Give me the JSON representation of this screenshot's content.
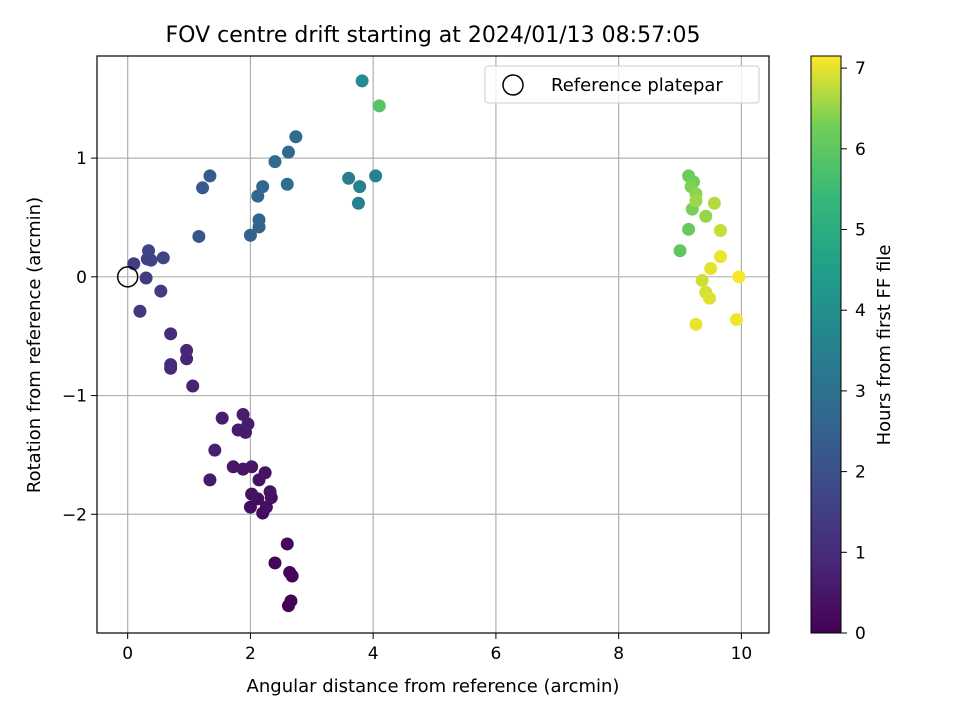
{
  "chart_data": {
    "type": "scatter",
    "title": "FOV centre drift starting at 2024/01/13 08:57:05",
    "xlabel": "Angular distance from reference (arcmin)",
    "ylabel": "Rotation from reference (arcmin)",
    "xlim": [
      -0.5,
      10.45
    ],
    "ylim": [
      -3.0,
      1.86
    ],
    "xticks": [
      0,
      2,
      4,
      6,
      8,
      10
    ],
    "xtick_labels": [
      "0",
      "2",
      "4",
      "6",
      "8",
      "10"
    ],
    "yticks": [
      -2,
      -1,
      0,
      1
    ],
    "ytick_labels": [
      "−2",
      "−1",
      "0",
      "1"
    ],
    "grid": true,
    "legend": {
      "position": "top-right",
      "entries": [
        "Reference platepar"
      ]
    },
    "reference_point": {
      "x": 0,
      "y": 0
    },
    "colorbar": {
      "label": "Hours from first FF file",
      "range": [
        0,
        7.15
      ],
      "ticks": [
        0,
        1,
        2,
        3,
        4,
        5,
        6,
        7
      ],
      "tick_labels": [
        "0",
        "1",
        "2",
        "3",
        "4",
        "5",
        "6",
        "7"
      ],
      "colormap": "viridis"
    },
    "points": [
      {
        "x": 2.62,
        "y": -2.77,
        "c": 0.02
      },
      {
        "x": 2.66,
        "y": -2.73,
        "c": 0.05
      },
      {
        "x": 2.68,
        "y": -2.52,
        "c": 0.08
      },
      {
        "x": 2.64,
        "y": -2.49,
        "c": 0.1
      },
      {
        "x": 2.4,
        "y": -2.41,
        "c": 0.12
      },
      {
        "x": 2.6,
        "y": -2.25,
        "c": 0.15
      },
      {
        "x": 2.2,
        "y": -1.99,
        "c": 0.25
      },
      {
        "x": 2.0,
        "y": -1.94,
        "c": 0.28
      },
      {
        "x": 2.26,
        "y": -1.94,
        "c": 0.3
      },
      {
        "x": 2.12,
        "y": -1.87,
        "c": 0.32
      },
      {
        "x": 2.34,
        "y": -1.86,
        "c": 0.34
      },
      {
        "x": 2.02,
        "y": -1.83,
        "c": 0.36
      },
      {
        "x": 2.32,
        "y": -1.81,
        "c": 0.38
      },
      {
        "x": 2.14,
        "y": -1.71,
        "c": 0.4
      },
      {
        "x": 2.24,
        "y": -1.65,
        "c": 0.42
      },
      {
        "x": 1.88,
        "y": -1.62,
        "c": 0.45
      },
      {
        "x": 2.02,
        "y": -1.6,
        "c": 0.48
      },
      {
        "x": 1.72,
        "y": -1.6,
        "c": 0.5
      },
      {
        "x": 1.34,
        "y": -1.71,
        "c": 0.55
      },
      {
        "x": 1.92,
        "y": -1.31,
        "c": 0.58
      },
      {
        "x": 1.8,
        "y": -1.29,
        "c": 0.6
      },
      {
        "x": 1.96,
        "y": -1.24,
        "c": 0.62
      },
      {
        "x": 1.88,
        "y": -1.16,
        "c": 0.64
      },
      {
        "x": 1.54,
        "y": -1.19,
        "c": 0.66
      },
      {
        "x": 1.42,
        "y": -1.46,
        "c": 0.7
      },
      {
        "x": 1.06,
        "y": -0.92,
        "c": 0.78
      },
      {
        "x": 0.96,
        "y": -0.69,
        "c": 0.85
      },
      {
        "x": 0.96,
        "y": -0.62,
        "c": 0.88
      },
      {
        "x": 0.7,
        "y": -0.77,
        "c": 0.92
      },
      {
        "x": 0.7,
        "y": -0.74,
        "c": 0.95
      },
      {
        "x": 0.7,
        "y": -0.48,
        "c": 1.0
      },
      {
        "x": 0.2,
        "y": -0.29,
        "c": 1.3
      },
      {
        "x": 0.54,
        "y": -0.12,
        "c": 1.4
      },
      {
        "x": 0.3,
        "y": -0.01,
        "c": 1.45
      },
      {
        "x": 0.1,
        "y": 0.11,
        "c": 1.5
      },
      {
        "x": 0.32,
        "y": 0.15,
        "c": 1.55
      },
      {
        "x": 0.38,
        "y": 0.14,
        "c": 1.6
      },
      {
        "x": 0.58,
        "y": 0.16,
        "c": 1.62
      },
      {
        "x": 0.34,
        "y": 0.22,
        "c": 1.65
      },
      {
        "x": 1.16,
        "y": 0.34,
        "c": 2.15
      },
      {
        "x": 1.22,
        "y": 0.75,
        "c": 2.25
      },
      {
        "x": 1.34,
        "y": 0.85,
        "c": 2.3
      },
      {
        "x": 2.0,
        "y": 0.35,
        "c": 2.5
      },
      {
        "x": 2.14,
        "y": 0.42,
        "c": 2.55
      },
      {
        "x": 2.14,
        "y": 0.48,
        "c": 2.6
      },
      {
        "x": 2.12,
        "y": 0.68,
        "c": 2.65
      },
      {
        "x": 2.2,
        "y": 0.76,
        "c": 2.7
      },
      {
        "x": 2.4,
        "y": 0.97,
        "c": 2.75
      },
      {
        "x": 2.62,
        "y": 1.05,
        "c": 2.8
      },
      {
        "x": 2.74,
        "y": 1.18,
        "c": 2.85
      },
      {
        "x": 2.6,
        "y": 0.78,
        "c": 2.9
      },
      {
        "x": 3.6,
        "y": 0.83,
        "c": 3.45
      },
      {
        "x": 3.76,
        "y": 0.62,
        "c": 3.5
      },
      {
        "x": 3.78,
        "y": 0.76,
        "c": 3.55
      },
      {
        "x": 4.04,
        "y": 0.85,
        "c": 3.6
      },
      {
        "x": 3.82,
        "y": 1.65,
        "c": 3.9
      },
      {
        "x": 4.1,
        "y": 1.44,
        "c": 5.9
      },
      {
        "x": 9.0,
        "y": 0.22,
        "c": 6.0
      },
      {
        "x": 9.14,
        "y": 0.4,
        "c": 6.1
      },
      {
        "x": 9.14,
        "y": 0.85,
        "c": 6.2
      },
      {
        "x": 9.22,
        "y": 0.8,
        "c": 6.25
      },
      {
        "x": 9.2,
        "y": 0.57,
        "c": 6.3
      },
      {
        "x": 9.18,
        "y": 0.76,
        "c": 6.35
      },
      {
        "x": 9.26,
        "y": 0.7,
        "c": 6.45
      },
      {
        "x": 9.42,
        "y": 0.51,
        "c": 6.5
      },
      {
        "x": 9.26,
        "y": 0.64,
        "c": 6.55
      },
      {
        "x": 9.56,
        "y": 0.62,
        "c": 6.7
      },
      {
        "x": 9.66,
        "y": 0.39,
        "c": 6.8
      },
      {
        "x": 9.36,
        "y": -0.03,
        "c": 6.85
      },
      {
        "x": 9.42,
        "y": -0.13,
        "c": 6.9
      },
      {
        "x": 9.48,
        "y": -0.18,
        "c": 6.95
      },
      {
        "x": 9.5,
        "y": 0.07,
        "c": 7.0
      },
      {
        "x": 9.26,
        "y": -0.4,
        "c": 7.02
      },
      {
        "x": 9.66,
        "y": 0.17,
        "c": 7.05
      },
      {
        "x": 9.92,
        "y": -0.36,
        "c": 7.08
      },
      {
        "x": 9.96,
        "y": 0.0,
        "c": 7.12
      }
    ]
  }
}
